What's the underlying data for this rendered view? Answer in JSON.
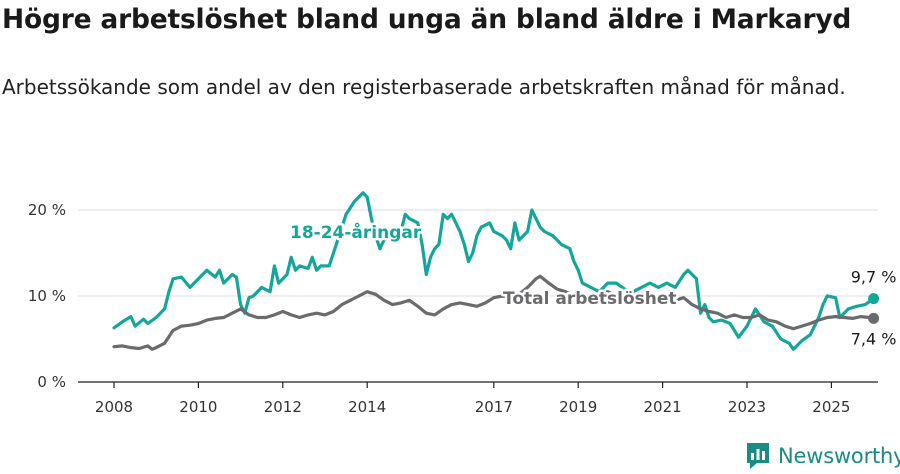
{
  "title": "Högre arbetslöshet bland unga än bland äldre i Markaryd",
  "subtitle": "Arbetssökande som andel av den registerbaserade arbetskraften månad för månad.",
  "brand": {
    "name": "Newsworthy",
    "icon": "newsworthy-logo-icon",
    "color": "#1a8c84"
  },
  "chart_data": {
    "type": "line",
    "x_unit": "year",
    "xlim": [
      2007.5,
      2026.0
    ],
    "ylim": [
      0,
      22.5
    ],
    "y_ticks": [
      {
        "value": 0,
        "label": "0 %"
      },
      {
        "value": 10,
        "label": "10 %"
      },
      {
        "value": 20,
        "label": "20 %"
      }
    ],
    "x_ticks": [
      {
        "value": 2008,
        "label": "2008"
      },
      {
        "value": 2010,
        "label": "2010"
      },
      {
        "value": 2012,
        "label": "2012"
      },
      {
        "value": 2014,
        "label": "2014"
      },
      {
        "value": 2017,
        "label": "2017"
      },
      {
        "value": 2019,
        "label": "2019"
      },
      {
        "value": 2021,
        "label": "2021"
      },
      {
        "value": 2023,
        "label": "2023"
      },
      {
        "value": 2025,
        "label": "2025"
      }
    ],
    "grid": true,
    "series": [
      {
        "name": "18-24-åringar",
        "color": "#14a699",
        "end_label": "9,7 %",
        "points": [
          [
            2008.0,
            6.3
          ],
          [
            2008.2,
            7.0
          ],
          [
            2008.4,
            7.6
          ],
          [
            2008.5,
            6.5
          ],
          [
            2008.7,
            7.3
          ],
          [
            2008.8,
            6.8
          ],
          [
            2009.0,
            7.5
          ],
          [
            2009.2,
            8.5
          ],
          [
            2009.3,
            10.5
          ],
          [
            2009.4,
            12.0
          ],
          [
            2009.6,
            12.2
          ],
          [
            2009.8,
            11.0
          ],
          [
            2009.9,
            11.5
          ],
          [
            2010.1,
            12.5
          ],
          [
            2010.2,
            13.0
          ],
          [
            2010.4,
            12.2
          ],
          [
            2010.5,
            13.0
          ],
          [
            2010.6,
            11.5
          ],
          [
            2010.8,
            12.5
          ],
          [
            2010.9,
            12.2
          ],
          [
            2011.0,
            9.0
          ],
          [
            2011.1,
            8.0
          ],
          [
            2011.2,
            9.8
          ],
          [
            2011.3,
            10.0
          ],
          [
            2011.5,
            11.0
          ],
          [
            2011.7,
            10.5
          ],
          [
            2011.8,
            13.5
          ],
          [
            2011.9,
            11.5
          ],
          [
            2012.1,
            12.5
          ],
          [
            2012.2,
            14.5
          ],
          [
            2012.3,
            13.0
          ],
          [
            2012.4,
            13.5
          ],
          [
            2012.6,
            13.2
          ],
          [
            2012.7,
            14.5
          ],
          [
            2012.8,
            13.0
          ],
          [
            2012.9,
            13.5
          ],
          [
            2013.1,
            13.5
          ],
          [
            2013.3,
            16.5
          ],
          [
            2013.5,
            19.5
          ],
          [
            2013.7,
            21.0
          ],
          [
            2013.9,
            22.0
          ],
          [
            2014.0,
            21.5
          ],
          [
            2014.1,
            19.0
          ],
          [
            2014.2,
            17.0
          ],
          [
            2014.3,
            15.5
          ],
          [
            2014.4,
            16.5
          ],
          [
            2014.6,
            17.0
          ],
          [
            2014.7,
            16.5
          ],
          [
            2014.8,
            17.5
          ],
          [
            2014.9,
            19.5
          ],
          [
            2015.0,
            19.0
          ],
          [
            2015.2,
            18.5
          ],
          [
            2015.3,
            16.0
          ],
          [
            2015.4,
            12.5
          ],
          [
            2015.5,
            14.5
          ],
          [
            2015.6,
            15.5
          ],
          [
            2015.7,
            16.0
          ],
          [
            2015.8,
            19.5
          ],
          [
            2015.9,
            19.0
          ],
          [
            2016.0,
            19.5
          ],
          [
            2016.1,
            18.5
          ],
          [
            2016.2,
            17.5
          ],
          [
            2016.3,
            16.0
          ],
          [
            2016.4,
            14.0
          ],
          [
            2016.5,
            15.0
          ],
          [
            2016.6,
            17.0
          ],
          [
            2016.7,
            18.0
          ],
          [
            2016.9,
            18.5
          ],
          [
            2017.0,
            17.5
          ],
          [
            2017.2,
            17.0
          ],
          [
            2017.3,
            16.5
          ],
          [
            2017.4,
            15.5
          ],
          [
            2017.5,
            18.5
          ],
          [
            2017.6,
            16.5
          ],
          [
            2017.7,
            17.0
          ],
          [
            2017.8,
            17.5
          ],
          [
            2017.9,
            20.0
          ],
          [
            2018.0,
            19.0
          ],
          [
            2018.1,
            18.0
          ],
          [
            2018.2,
            17.5
          ],
          [
            2018.4,
            17.0
          ],
          [
            2018.6,
            16.0
          ],
          [
            2018.8,
            15.5
          ],
          [
            2018.9,
            14.0
          ],
          [
            2019.0,
            13.0
          ],
          [
            2019.1,
            11.5
          ],
          [
            2019.3,
            11.0
          ],
          [
            2019.5,
            10.5
          ],
          [
            2019.7,
            11.5
          ],
          [
            2019.9,
            11.5
          ],
          [
            2020.1,
            10.8
          ],
          [
            2020.3,
            10.5
          ],
          [
            2020.5,
            11.0
          ],
          [
            2020.7,
            11.5
          ],
          [
            2020.9,
            11.0
          ],
          [
            2021.1,
            11.5
          ],
          [
            2021.3,
            11.0
          ],
          [
            2021.5,
            12.5
          ],
          [
            2021.6,
            13.0
          ],
          [
            2021.8,
            12.0
          ],
          [
            2021.9,
            8.0
          ],
          [
            2022.0,
            9.0
          ],
          [
            2022.1,
            7.5
          ],
          [
            2022.2,
            7.0
          ],
          [
            2022.4,
            7.2
          ],
          [
            2022.6,
            6.8
          ],
          [
            2022.8,
            5.2
          ],
          [
            2023.0,
            6.5
          ],
          [
            2023.2,
            8.5
          ],
          [
            2023.4,
            7.0
          ],
          [
            2023.6,
            6.5
          ],
          [
            2023.8,
            5.0
          ],
          [
            2024.0,
            4.5
          ],
          [
            2024.1,
            3.8
          ],
          [
            2024.3,
            4.8
          ],
          [
            2024.5,
            5.5
          ],
          [
            2024.7,
            7.5
          ],
          [
            2024.8,
            9.0
          ],
          [
            2024.9,
            10.0
          ],
          [
            2025.1,
            9.8
          ],
          [
            2025.2,
            7.5
          ],
          [
            2025.3,
            8.0
          ],
          [
            2025.4,
            8.5
          ],
          [
            2025.6,
            8.8
          ],
          [
            2025.8,
            9.0
          ],
          [
            2026.0,
            9.7
          ]
        ]
      },
      {
        "name": "Total arbetslöshet",
        "color": "#6b6b6e",
        "end_label": "7,4 %",
        "points": [
          [
            2008.0,
            4.1
          ],
          [
            2008.2,
            4.2
          ],
          [
            2008.4,
            4.0
          ],
          [
            2008.6,
            3.9
          ],
          [
            2008.8,
            4.2
          ],
          [
            2008.9,
            3.8
          ],
          [
            2009.0,
            4.0
          ],
          [
            2009.2,
            4.5
          ],
          [
            2009.4,
            6.0
          ],
          [
            2009.6,
            6.5
          ],
          [
            2009.8,
            6.6
          ],
          [
            2010.0,
            6.8
          ],
          [
            2010.2,
            7.2
          ],
          [
            2010.4,
            7.4
          ],
          [
            2010.6,
            7.5
          ],
          [
            2010.8,
            8.0
          ],
          [
            2011.0,
            8.5
          ],
          [
            2011.2,
            7.8
          ],
          [
            2011.4,
            7.5
          ],
          [
            2011.6,
            7.5
          ],
          [
            2011.8,
            7.8
          ],
          [
            2012.0,
            8.2
          ],
          [
            2012.2,
            7.8
          ],
          [
            2012.4,
            7.5
          ],
          [
            2012.6,
            7.8
          ],
          [
            2012.8,
            8.0
          ],
          [
            2013.0,
            7.8
          ],
          [
            2013.2,
            8.2
          ],
          [
            2013.4,
            9.0
          ],
          [
            2013.6,
            9.5
          ],
          [
            2013.8,
            10.0
          ],
          [
            2014.0,
            10.5
          ],
          [
            2014.2,
            10.2
          ],
          [
            2014.4,
            9.5
          ],
          [
            2014.6,
            9.0
          ],
          [
            2014.8,
            9.2
          ],
          [
            2015.0,
            9.5
          ],
          [
            2015.2,
            8.8
          ],
          [
            2015.4,
            8.0
          ],
          [
            2015.6,
            7.8
          ],
          [
            2015.8,
            8.5
          ],
          [
            2016.0,
            9.0
          ],
          [
            2016.2,
            9.2
          ],
          [
            2016.4,
            9.0
          ],
          [
            2016.6,
            8.8
          ],
          [
            2016.8,
            9.2
          ],
          [
            2017.0,
            9.8
          ],
          [
            2017.2,
            10.0
          ],
          [
            2017.4,
            9.8
          ],
          [
            2017.6,
            10.2
          ],
          [
            2017.8,
            11.0
          ],
          [
            2018.0,
            12.0
          ],
          [
            2018.1,
            12.3
          ],
          [
            2018.3,
            11.5
          ],
          [
            2018.5,
            10.8
          ],
          [
            2018.7,
            10.5
          ],
          [
            2018.9,
            10.0
          ],
          [
            2019.1,
            9.5
          ],
          [
            2019.3,
            9.8
          ],
          [
            2019.5,
            10.2
          ],
          [
            2019.7,
            10.5
          ],
          [
            2019.9,
            10.0
          ],
          [
            2020.1,
            9.5
          ],
          [
            2020.3,
            10.0
          ],
          [
            2020.5,
            10.3
          ],
          [
            2020.7,
            10.0
          ],
          [
            2020.9,
            9.8
          ],
          [
            2021.1,
            10.0
          ],
          [
            2021.3,
            9.5
          ],
          [
            2021.5,
            9.8
          ],
          [
            2021.7,
            9.0
          ],
          [
            2021.9,
            8.5
          ],
          [
            2022.1,
            8.2
          ],
          [
            2022.3,
            8.0
          ],
          [
            2022.5,
            7.5
          ],
          [
            2022.7,
            7.8
          ],
          [
            2022.9,
            7.5
          ],
          [
            2023.1,
            7.5
          ],
          [
            2023.3,
            7.8
          ],
          [
            2023.5,
            7.2
          ],
          [
            2023.7,
            7.0
          ],
          [
            2023.9,
            6.5
          ],
          [
            2024.1,
            6.2
          ],
          [
            2024.3,
            6.5
          ],
          [
            2024.5,
            6.8
          ],
          [
            2024.7,
            7.2
          ],
          [
            2024.9,
            7.5
          ],
          [
            2025.1,
            7.6
          ],
          [
            2025.3,
            7.5
          ],
          [
            2025.5,
            7.4
          ],
          [
            2025.7,
            7.6
          ],
          [
            2025.9,
            7.5
          ],
          [
            2026.0,
            7.4
          ]
        ]
      }
    ]
  }
}
